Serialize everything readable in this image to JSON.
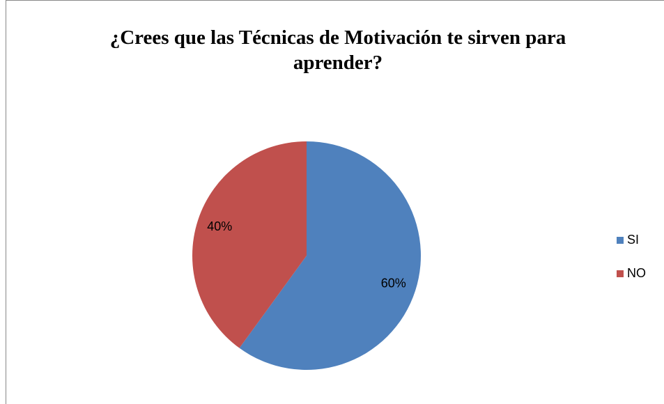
{
  "chart_data": {
    "type": "pie",
    "title": "¿Crees que las Técnicas de Motivación te sirven para aprender?",
    "categories": [
      "SI",
      "NO"
    ],
    "values": [
      60,
      40
    ],
    "value_labels": [
      "60%",
      "40%"
    ],
    "colors": [
      "#4f81bd",
      "#c0504d"
    ],
    "legend": "right"
  }
}
